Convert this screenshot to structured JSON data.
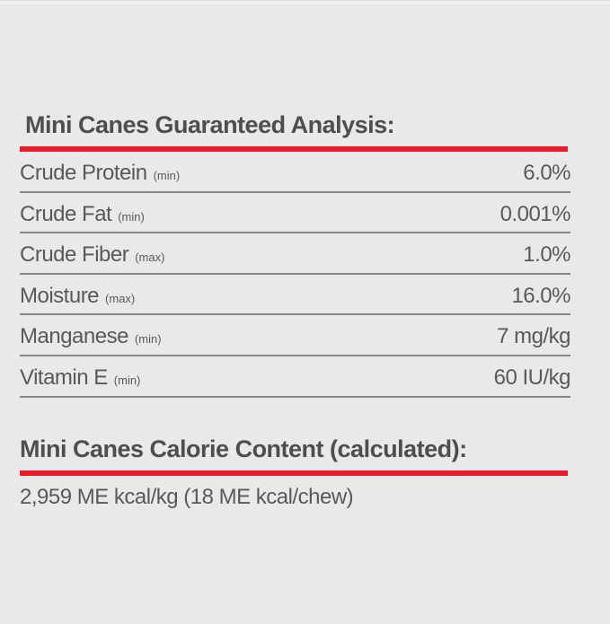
{
  "page": {
    "background_color": "#e9e9e9",
    "accent_red": "#ea1c2c",
    "text_dark": "#4d4e50",
    "text_body": "#58595b"
  },
  "guaranteed_analysis": {
    "title": "Mini Canes Guaranteed Analysis:",
    "rows": [
      {
        "label": "Crude Protein",
        "qualifier": "(min)",
        "value": "6.0%"
      },
      {
        "label": "Crude Fat",
        "qualifier": "(min)",
        "value": "0.001%"
      },
      {
        "label": "Crude Fiber",
        "qualifier": "(max)",
        "value": "1.0%"
      },
      {
        "label": "Moisture",
        "qualifier": "(max)",
        "value": "16.0%"
      },
      {
        "label": "Manganese",
        "qualifier": "(min)",
        "value": "7 mg/kg"
      },
      {
        "label": "Vitamin E",
        "qualifier": "(min)",
        "value": "60 IU/kg"
      }
    ]
  },
  "calorie_content": {
    "title": "Mini Canes Calorie Content (calculated):",
    "value": "2,959 ME kcal/kg (18 ME kcal/chew)"
  }
}
